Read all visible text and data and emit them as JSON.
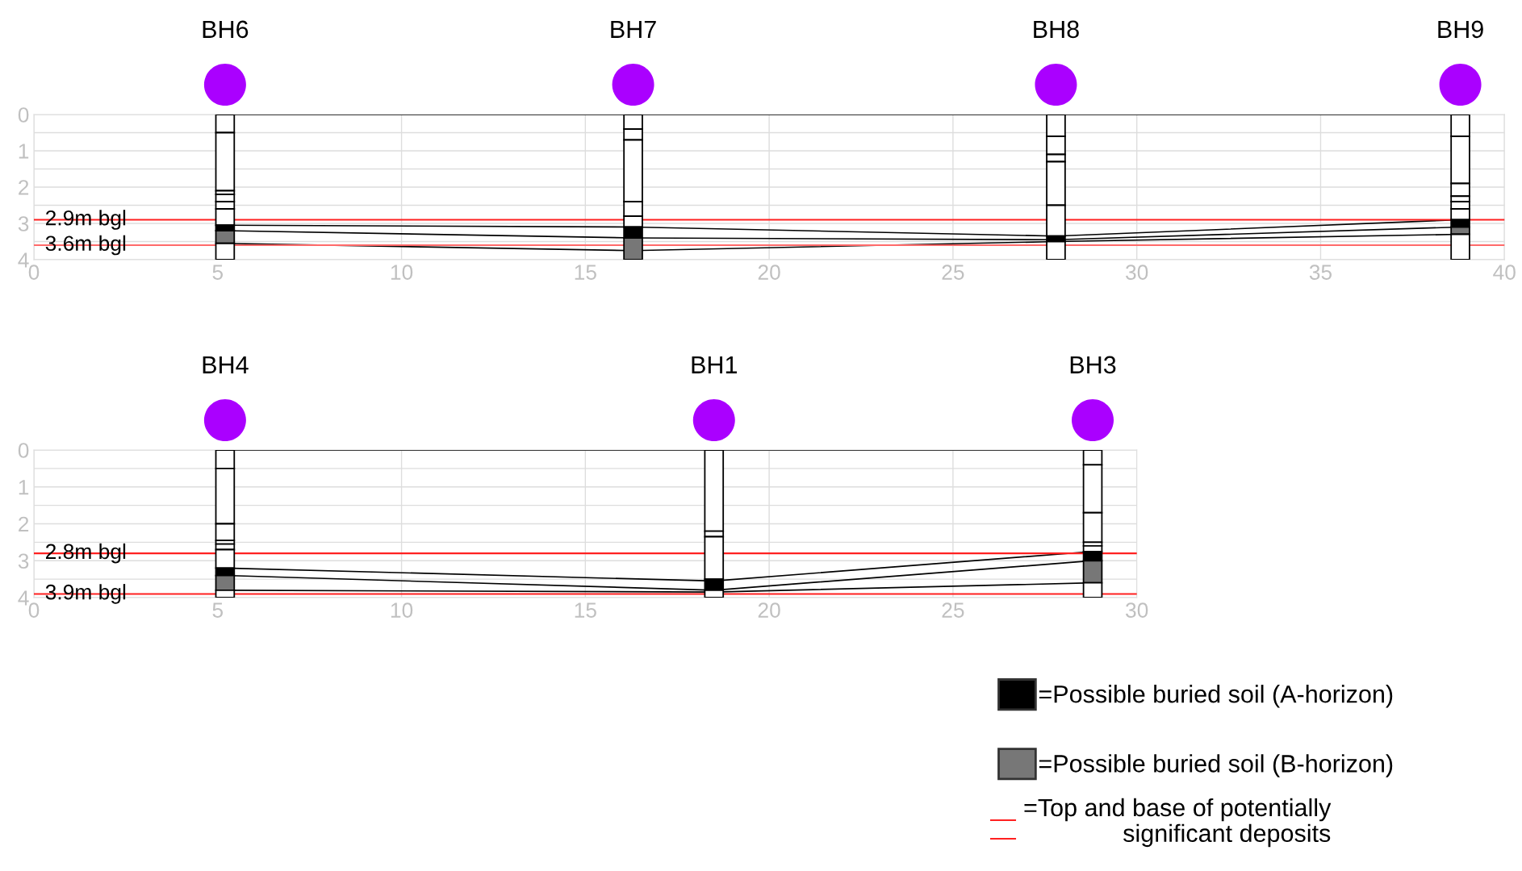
{
  "chart_data": [
    {
      "type": "bar",
      "xlim": [
        0,
        40
      ],
      "ylim": [
        4,
        0
      ],
      "xticks": [
        0,
        5,
        10,
        15,
        20,
        25,
        30,
        35,
        40
      ],
      "yticks": [
        0,
        {
          "value": 0.5,
          "label": null
        },
        1,
        {
          "value": 1.5,
          "label": null
        },
        2,
        {
          "value": 2.5,
          "label": null
        },
        3,
        {
          "value": 3.5,
          "label": null
        },
        4
      ],
      "annotations": [
        "BH6",
        "BH7",
        "BH8",
        "BH9"
      ],
      "grid": true,
      "series": [
        {
          "type": "bar",
          "color": "#ffffff",
          "x": [
            5.2,
            16.3,
            27.8,
            38.8
          ],
          "base": [
            0,
            0,
            0,
            0
          ],
          "values": [
            0.5,
            0.4,
            0.6,
            0.6
          ]
        },
        {
          "type": "bar",
          "color": "#ffffff",
          "x": [
            5.2,
            16.3,
            27.8,
            38.8
          ],
          "base": [
            0.5,
            0.4,
            0.6,
            0.6
          ],
          "values": [
            1.6,
            0.3,
            0.5,
            1.3
          ]
        },
        {
          "type": "bar",
          "color": "#ffffff",
          "x": [
            5.2,
            16.3,
            27.8,
            38.8
          ],
          "base": [
            2.1,
            0.7,
            1.1,
            1.9
          ],
          "values": [
            0.1,
            1.7,
            0.2,
            0.35
          ]
        },
        {
          "type": "bar",
          "color": "#ffffff",
          "x": [
            5.2,
            16.3,
            27.8,
            38.8
          ],
          "base": [
            2.2,
            2.4,
            1.3,
            2.25
          ],
          "values": [
            0.2,
            0.4,
            1.2,
            0.15
          ]
        },
        {
          "type": "bar",
          "color": "#ffffff",
          "x": [
            5.2,
            16.3,
            27.8,
            38.8
          ],
          "base": [
            2.4,
            2.8,
            2.5,
            2.4
          ],
          "values": [
            0.2,
            0.3,
            0.85,
            0.2
          ]
        },
        {
          "type": "bar",
          "color": "#ffffff",
          "x": [
            5.2,
            16.3,
            27.8,
            38.8
          ],
          "base": [
            2.6,
            null,
            null,
            2.6
          ],
          "values": [
            0.45,
            null,
            null,
            0.3
          ]
        },
        {
          "type": "bar",
          "color": "#000000",
          "x": [
            5.2,
            16.3,
            27.8,
            38.8
          ],
          "base": [
            3.05,
            3.1,
            3.35,
            2.9
          ],
          "values": [
            0.15,
            0.3,
            0.15,
            0.2
          ]
        },
        {
          "type": "bar",
          "color": "#777777",
          "x": [
            5.2,
            16.3,
            27.8,
            38.8
          ],
          "base": [
            3.2,
            3.4,
            null,
            3.1
          ],
          "values": [
            0.35,
            0.6,
            null,
            0.2
          ]
        },
        {
          "type": "bar",
          "color": "#ffffff",
          "x": [
            5.2,
            16.3,
            27.8,
            38.8
          ],
          "base": [
            3.55,
            null,
            3.5,
            3.3
          ],
          "values": [
            0.45,
            null,
            0.5,
            0.7
          ]
        },
        {
          "type": "line",
          "color": "#000000",
          "x": [
            5.2,
            16.3,
            27.8,
            38.8
          ],
          "values": [
            0,
            0,
            0,
            0
          ]
        },
        {
          "type": "line",
          "color": "#000000",
          "x": [
            5.2,
            16.3,
            27.8,
            38.8
          ],
          "values": [
            3.05,
            3.1,
            3.35,
            2.9
          ]
        },
        {
          "type": "line",
          "color": "#000000",
          "x": [
            5.2,
            16.3,
            27.8,
            38.8
          ],
          "values": [
            3.2,
            3.4,
            3.45,
            3.1
          ]
        },
        {
          "type": "line",
          "color": "#000000",
          "x": [
            5.2,
            16.3,
            27.8,
            38.8
          ],
          "values": [
            3.55,
            3.75,
            3.5,
            3.3
          ]
        }
      ],
      "ref_lines": [
        {
          "axis": "y",
          "value": 2.9,
          "label": "2.9m bgl",
          "color": "#ff2020"
        },
        {
          "axis": "y",
          "value": 3.6,
          "label": "3.6m bgl",
          "color": "#ff6a6a"
        }
      ]
    },
    {
      "type": "bar",
      "xlim": [
        0,
        30
      ],
      "ylim": [
        4,
        0
      ],
      "xticks": [
        0,
        5,
        10,
        15,
        20,
        25,
        30
      ],
      "yticks": [
        0,
        {
          "value": 0.5,
          "label": null
        },
        1,
        {
          "value": 1.5,
          "label": null
        },
        2,
        {
          "value": 2.5,
          "label": null
        },
        3,
        {
          "value": 3.5,
          "label": null
        },
        4
      ],
      "grid": true,
      "legend": "bottom right",
      "series": [
        {
          "type": "bar",
          "color": "#ffffff",
          "x": [
            5.2,
            18.5,
            28.8
          ],
          "base": [
            0,
            0,
            0
          ],
          "values": [
            0.5,
            2.2,
            0.4
          ]
        },
        {
          "type": "bar",
          "color": "#ffffff",
          "x": [
            5.2,
            18.5,
            28.8
          ],
          "base": [
            0.5,
            2.2,
            0.4
          ],
          "values": [
            1.5,
            0.15,
            1.3
          ]
        },
        {
          "type": "bar",
          "color": "#ffffff",
          "x": [
            5.2,
            18.5,
            28.8
          ],
          "base": [
            2.0,
            2.35,
            1.7
          ],
          "values": [
            0.45,
            1.15,
            0.8
          ]
        },
        {
          "type": "bar",
          "color": "#ffffff",
          "x": [
            5.2,
            18.5,
            28.8
          ],
          "base": [
            2.45,
            null,
            2.5
          ],
          "values": [
            0.1,
            null,
            0.1
          ]
        },
        {
          "type": "bar",
          "color": "#ffffff",
          "x": [
            5.2,
            18.5,
            28.8
          ],
          "base": [
            2.55,
            null,
            2.6
          ],
          "values": [
            0.15,
            null,
            0.15
          ]
        },
        {
          "type": "bar",
          "color": "#ffffff",
          "x": [
            5.2
          ],
          "base": [
            2.7
          ],
          "values": [
            0.5
          ]
        },
        {
          "type": "bar",
          "name": "=Possible buried soil (A-horizon)",
          "color": "#000000",
          "x": [
            5.2,
            18.5,
            28.8
          ],
          "base": [
            3.2,
            3.5,
            2.75
          ],
          "values": [
            0.2,
            0.3,
            0.25
          ]
        },
        {
          "type": "bar",
          "name": "=Possible buried soil (B-horizon)",
          "color": "#777777",
          "x": [
            5.2,
            18.5,
            28.8
          ],
          "base": [
            3.4,
            null,
            3.0
          ],
          "values": [
            0.4,
            null,
            0.6
          ]
        },
        {
          "type": "bar",
          "color": "#ffffff",
          "x": [
            5.2,
            18.5,
            28.8
          ],
          "base": [
            3.8,
            3.8,
            3.6
          ],
          "values": [
            0.2,
            0.2,
            0.4
          ]
        },
        {
          "type": "line",
          "color": "#000000",
          "x": [
            5.2,
            18.5,
            28.8
          ],
          "values": [
            0,
            0,
            0
          ]
        },
        {
          "type": "line",
          "color": "#000000",
          "x": [
            5.2,
            18.5,
            28.8
          ],
          "values": [
            3.2,
            3.55,
            2.75
          ]
        },
        {
          "type": "line",
          "color": "#000000",
          "x": [
            5.2,
            18.5,
            28.8
          ],
          "values": [
            3.4,
            3.8,
            3.0
          ]
        },
        {
          "type": "line",
          "color": "#000000",
          "x": [
            5.2,
            18.5,
            28.8
          ],
          "values": [
            3.8,
            3.85,
            3.6
          ]
        }
      ],
      "ref_lines": [
        {
          "axis": "y",
          "value": 2.8,
          "label": "2.8m bgl",
          "color": "#ff2020"
        },
        {
          "axis": "y",
          "value": 3.9,
          "label": "3.9m bgl",
          "color": "#ff2020"
        }
      ],
      "annotations": [
        "BH4",
        "BH1",
        "BH3",
        "=Top and base of potentially\nsignificant deposits"
      ]
    }
  ]
}
